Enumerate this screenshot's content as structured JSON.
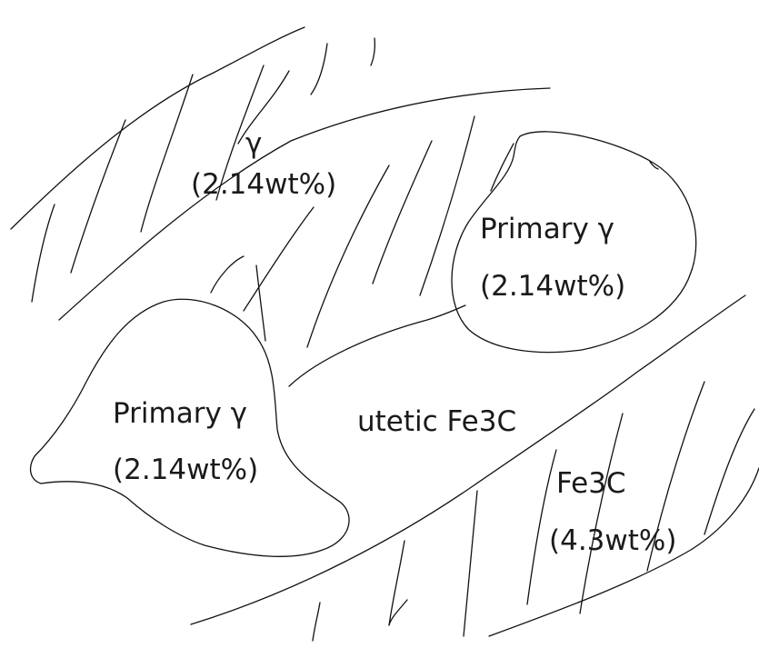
{
  "labels": {
    "upper_phase": "γ",
    "upper_comp": "(2.14wt%)",
    "right_phase": "Primary γ",
    "right_comp": "(2.14wt%)",
    "left_phase": "Primary γ",
    "left_comp": "(2.14wt%)",
    "center": "utetic Fe3C",
    "lower_phase": "Fe3C",
    "lower_comp": "(4.3wt%)"
  }
}
